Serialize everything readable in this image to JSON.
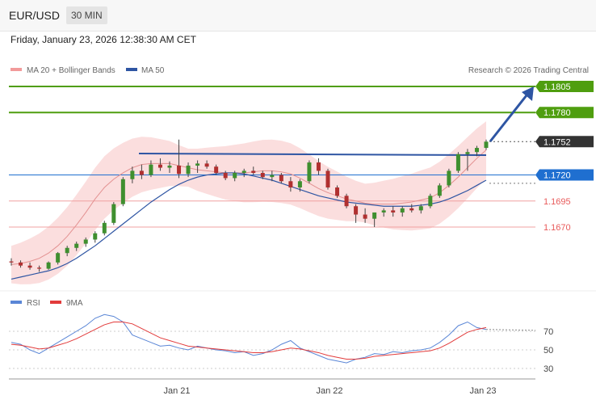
{
  "header": {
    "symbol": "EUR/USD",
    "timeframe": "30 MIN"
  },
  "datetime": "Friday, January 23, 2026 12:38:30 AM CET",
  "legend": {
    "bb_label": "MA 20 + Bollinger Bands",
    "ma50_label": "MA 50",
    "copyright": "Research © 2026 Trading Central"
  },
  "rsi_legend": {
    "rsi_label": "RSI",
    "ma_label": "9MA"
  },
  "colors": {
    "green": "#4f9e0f",
    "blue": "#1f6fd0",
    "red": "#e85a5a",
    "dark": "#333333",
    "ma50": "#2e55a3",
    "band_fill": "#f9d3d3",
    "rsi": "#5a86d6",
    "rsi_ma": "#e23b3b"
  },
  "chart_data": [
    {
      "type": "line",
      "title": "",
      "y_ticks": [
        1.167,
        1.1695,
        1.172,
        1.1752,
        1.178,
        1.1805
      ],
      "levels": [
        {
          "value": 1.1805,
          "label": "1.1805",
          "style": "resistance"
        },
        {
          "value": 1.178,
          "label": "1.1780",
          "style": "resistance"
        },
        {
          "value": 1.1752,
          "label": "1.1752",
          "style": "last_price"
        },
        {
          "value": 1.172,
          "label": "1.1720",
          "style": "pivot"
        },
        {
          "value": 1.1695,
          "label": "1.1695",
          "style": "support"
        },
        {
          "value": 1.167,
          "label": "1.1670",
          "style": "support"
        }
      ],
      "x_labels": [
        "Jan 21",
        "Jan 22",
        "Jan 23"
      ],
      "series": [
        {
          "name": "MA 20 + Bollinger Bands",
          "values": [
            1.1634,
            1.1635,
            1.1637,
            1.164,
            1.1645,
            1.1652,
            1.1661,
            1.1672,
            1.1684,
            1.1697,
            1.1708,
            1.1716,
            1.1722,
            1.1727,
            1.173,
            1.1731,
            1.1731,
            1.1731,
            1.1729,
            1.1727,
            1.1725,
            1.1724,
            1.1723,
            1.1722,
            1.1722,
            1.1722,
            1.1723,
            1.1724,
            1.1724,
            1.1723,
            1.1721,
            1.1717,
            1.1712,
            1.1707,
            1.1703,
            1.17,
            1.1697,
            1.1695,
            1.1693,
            1.1692,
            1.1692,
            1.1692,
            1.1693,
            1.1694,
            1.1696,
            1.1698,
            1.1703,
            1.171,
            1.1718,
            1.1727,
            1.1736,
            1.1744
          ]
        },
        {
          "name": "MA 50",
          "values": [
            1.162,
            1.1622,
            1.1624,
            1.1626,
            1.1628,
            1.1631,
            1.1635,
            1.164,
            1.1646,
            1.1652,
            1.1659,
            1.1666,
            1.1673,
            1.168,
            1.1687,
            1.1694,
            1.17,
            1.1706,
            1.1711,
            1.1715,
            1.1718,
            1.172,
            1.1721,
            1.1722,
            1.1722,
            1.1721,
            1.1719,
            1.1717,
            1.1715,
            1.1712,
            1.1709,
            1.1706,
            1.1703,
            1.17,
            1.1698,
            1.1696,
            1.1694,
            1.1693,
            1.1692,
            1.1691,
            1.169,
            1.169,
            1.169,
            1.169,
            1.1691,
            1.1692,
            1.1694,
            1.1697,
            1.1701,
            1.1705,
            1.171,
            1.1715
          ]
        }
      ],
      "candles": [
        [
          1.1637,
          1.164,
          1.1633,
          1.1636
        ],
        [
          1.1636,
          1.1638,
          1.1631,
          1.1633
        ],
        [
          1.1633,
          1.1636,
          1.1629,
          1.1631
        ],
        [
          1.1631,
          1.1633,
          1.1627,
          1.163
        ],
        [
          1.163,
          1.1637,
          1.1629,
          1.1636
        ],
        [
          1.1636,
          1.1646,
          1.1634,
          1.1645
        ],
        [
          1.1645,
          1.1652,
          1.1642,
          1.165
        ],
        [
          1.165,
          1.1656,
          1.1647,
          1.1654
        ],
        [
          1.1654,
          1.166,
          1.1651,
          1.1658
        ],
        [
          1.1658,
          1.1666,
          1.1655,
          1.1664
        ],
        [
          1.1664,
          1.1676,
          1.1662,
          1.1674
        ],
        [
          1.1674,
          1.1694,
          1.1672,
          1.1692
        ],
        [
          1.1692,
          1.1718,
          1.169,
          1.1716
        ],
        [
          1.1716,
          1.1728,
          1.1712,
          1.1724
        ],
        [
          1.1724,
          1.173,
          1.1716,
          1.172
        ],
        [
          1.172,
          1.1734,
          1.1718,
          1.173
        ],
        [
          1.173,
          1.1736,
          1.1724,
          1.1727
        ],
        [
          1.1727,
          1.1733,
          1.1722,
          1.1729
        ],
        [
          1.1729,
          1.1754,
          1.1717,
          1.1721
        ],
        [
          1.1721,
          1.1732,
          1.1718,
          1.1729
        ],
        [
          1.1729,
          1.1734,
          1.1722,
          1.1731
        ],
        [
          1.1731,
          1.1734,
          1.1726,
          1.1728
        ],
        [
          1.1728,
          1.173,
          1.172,
          1.1722
        ],
        [
          1.1722,
          1.1724,
          1.1715,
          1.1717
        ],
        [
          1.1717,
          1.1724,
          1.1714,
          1.1722
        ],
        [
          1.1722,
          1.1726,
          1.1718,
          1.1724
        ],
        [
          1.1724,
          1.1728,
          1.172,
          1.1722
        ],
        [
          1.1722,
          1.1724,
          1.1716,
          1.1718
        ],
        [
          1.1718,
          1.1724,
          1.1714,
          1.172
        ],
        [
          1.172,
          1.1722,
          1.1712,
          1.1714
        ],
        [
          1.1714,
          1.1718,
          1.1704,
          1.1708
        ],
        [
          1.1708,
          1.1716,
          1.1704,
          1.1714
        ],
        [
          1.1714,
          1.1734,
          1.1712,
          1.1732
        ],
        [
          1.1732,
          1.1736,
          1.172,
          1.1724
        ],
        [
          1.1724,
          1.1726,
          1.1706,
          1.1708
        ],
        [
          1.1708,
          1.171,
          1.1698,
          1.17
        ],
        [
          1.17,
          1.1702,
          1.1688,
          1.169
        ],
        [
          1.169,
          1.1692,
          1.1674,
          1.1682
        ],
        [
          1.1682,
          1.1688,
          1.1674,
          1.1678
        ],
        [
          1.1678,
          1.1684,
          1.167,
          1.1684
        ],
        [
          1.1684,
          1.1688,
          1.168,
          1.1686
        ],
        [
          1.1686,
          1.169,
          1.168,
          1.1684
        ],
        [
          1.1684,
          1.169,
          1.168,
          1.1688
        ],
        [
          1.1688,
          1.1692,
          1.1684,
          1.1686
        ],
        [
          1.1686,
          1.1692,
          1.1683,
          1.169
        ],
        [
          1.169,
          1.1702,
          1.1688,
          1.17
        ],
        [
          1.17,
          1.1712,
          1.1698,
          1.171
        ],
        [
          1.171,
          1.1726,
          1.1708,
          1.1724
        ],
        [
          1.1724,
          1.1742,
          1.1722,
          1.174
        ],
        [
          1.174,
          1.1745,
          1.1724,
          1.1742
        ],
        [
          1.1742,
          1.1748,
          1.1738,
          1.1746
        ],
        [
          1.1746,
          1.1754,
          1.1744,
          1.1752
        ]
      ]
    },
    {
      "type": "line",
      "title": "",
      "y_ticks": [
        30,
        50,
        70
      ],
      "ylim": [
        20,
        100
      ],
      "series": [
        {
          "name": "RSI",
          "values": [
            58,
            56,
            50,
            46,
            52,
            58,
            64,
            70,
            76,
            84,
            88,
            86,
            80,
            66,
            62,
            58,
            54,
            55,
            52,
            50,
            54,
            52,
            50,
            49,
            47,
            48,
            44,
            46,
            50,
            56,
            60,
            52,
            48,
            44,
            40,
            38,
            36,
            40,
            42,
            46,
            45,
            48,
            47,
            49,
            50,
            52,
            58,
            66,
            76,
            80,
            74,
            72
          ]
        },
        {
          "name": "9MA",
          "values": [
            56,
            55,
            53,
            51,
            52,
            55,
            58,
            62,
            67,
            72,
            77,
            80,
            80,
            78,
            73,
            68,
            63,
            60,
            57,
            54,
            53,
            52,
            51,
            50,
            49,
            48,
            47,
            47,
            48,
            50,
            52,
            51,
            49,
            47,
            44,
            42,
            40,
            40,
            41,
            43,
            44,
            45,
            46,
            47,
            48,
            49,
            52,
            57,
            63,
            69,
            72,
            74
          ]
        }
      ]
    }
  ]
}
